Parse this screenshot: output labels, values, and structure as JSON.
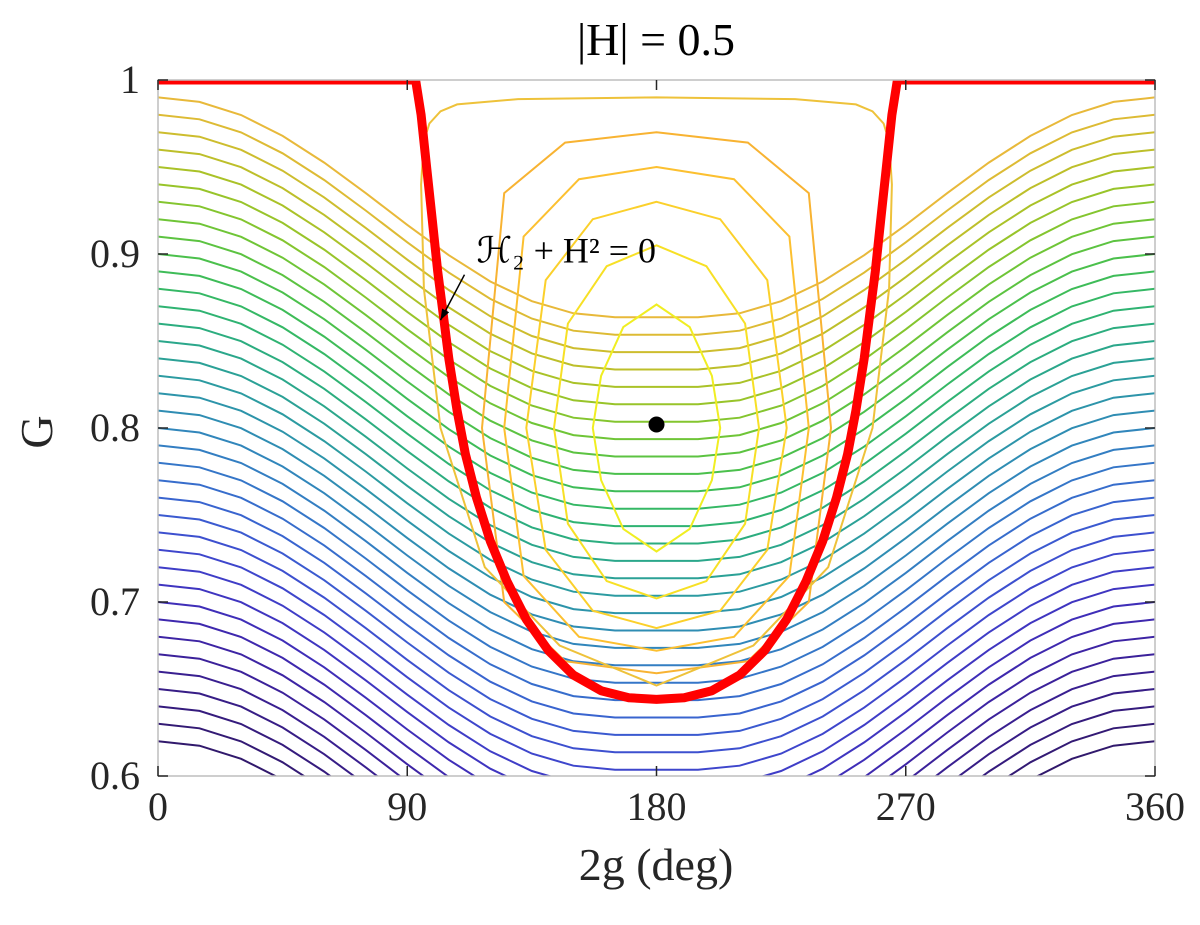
{
  "chart_data": {
    "type": "line",
    "title": "|H| = 0.5",
    "xlabel": "2g (deg)",
    "ylabel": "G",
    "xlim": [
      0,
      360
    ],
    "ylim": [
      0.6,
      1.0
    ],
    "xticks": [
      0,
      90,
      180,
      270,
      360
    ],
    "xtick_labels": [
      "0",
      "90",
      "180",
      "270",
      "360"
    ],
    "yticks": [
      0.6,
      0.7,
      0.8,
      0.9,
      1.0
    ],
    "ytick_labels": [
      "0.6",
      "0.7",
      "0.8",
      "0.9",
      "1"
    ],
    "grid": false,
    "separatrix": {
      "color": "#ff0000",
      "x": [
        0,
        93,
        95,
        97,
        99,
        101,
        103,
        105,
        108,
        111,
        115,
        120,
        126,
        133,
        141,
        150,
        160,
        170,
        180,
        190,
        200,
        210,
        219,
        227,
        234,
        240,
        245,
        249,
        252,
        255,
        257,
        259,
        261,
        263,
        265,
        267,
        360
      ],
      "y": [
        1.0,
        1.0,
        0.98,
        0.95,
        0.92,
        0.89,
        0.865,
        0.84,
        0.81,
        0.785,
        0.76,
        0.735,
        0.712,
        0.69,
        0.672,
        0.658,
        0.649,
        0.645,
        0.644,
        0.645,
        0.649,
        0.658,
        0.672,
        0.69,
        0.712,
        0.735,
        0.76,
        0.785,
        0.81,
        0.84,
        0.865,
        0.89,
        0.92,
        0.95,
        0.98,
        1.0,
        1.0
      ]
    },
    "equilibrium": {
      "x": 180,
      "y": 0.802,
      "color": "#000000"
    },
    "annotation": {
      "text": "ℋ₂ + H² = 0",
      "x": 115,
      "y": 0.895,
      "arrow_to_x": 102,
      "arrow_to_y": 0.862
    },
    "libration_orbits": [
      {
        "x": [
          180,
          192,
          200,
          203,
          200,
          192,
          180,
          168,
          160,
          157,
          160,
          168,
          180
        ],
        "y": [
          0.871,
          0.858,
          0.83,
          0.8,
          0.77,
          0.742,
          0.729,
          0.742,
          0.77,
          0.8,
          0.83,
          0.858,
          0.871
        ],
        "color": "#f0ee22"
      },
      {
        "x": [
          180,
          198,
          212,
          217,
          212,
          198,
          180,
          162,
          148,
          143,
          148,
          162,
          180
        ],
        "y": [
          0.905,
          0.893,
          0.86,
          0.8,
          0.745,
          0.712,
          0.702,
          0.712,
          0.745,
          0.8,
          0.86,
          0.893,
          0.905
        ],
        "color": "#f7e025"
      },
      {
        "x": [
          180,
          203,
          220,
          227,
          220,
          203,
          180,
          157,
          140,
          133,
          140,
          157,
          180
        ],
        "y": [
          0.93,
          0.92,
          0.885,
          0.8,
          0.73,
          0.695,
          0.685,
          0.695,
          0.73,
          0.8,
          0.885,
          0.92,
          0.93
        ],
        "color": "#fbd02b"
      },
      {
        "x": [
          180,
          208,
          228,
          235,
          228,
          208,
          180,
          152,
          132,
          125,
          132,
          152,
          180
        ],
        "y": [
          0.95,
          0.943,
          0.91,
          0.8,
          0.715,
          0.68,
          0.672,
          0.68,
          0.715,
          0.8,
          0.91,
          0.943,
          0.95
        ],
        "color": "#fcc030"
      },
      {
        "x": [
          180,
          213,
          235,
          243,
          235,
          213,
          180,
          147,
          125,
          117,
          125,
          147,
          180
        ],
        "y": [
          0.97,
          0.964,
          0.935,
          0.8,
          0.7,
          0.666,
          0.659,
          0.666,
          0.7,
          0.8,
          0.935,
          0.964,
          0.97
        ],
        "color": "#f8b332"
      },
      {
        "x": [
          180,
          230,
          252,
          258,
          262,
          264,
          265,
          264,
          258,
          242,
          215,
          180,
          145,
          118,
          102,
          96,
          95,
          96,
          98,
          102,
          108,
          130,
          180
        ],
        "y": [
          0.99,
          0.989,
          0.986,
          0.982,
          0.975,
          0.965,
          0.94,
          0.88,
          0.8,
          0.72,
          0.675,
          0.652,
          0.675,
          0.72,
          0.8,
          0.88,
          0.94,
          0.965,
          0.975,
          0.982,
          0.986,
          0.989,
          0.99
        ],
        "color": "#eec23a"
      }
    ],
    "circulation_left": {
      "x": [
        0,
        15,
        30,
        45,
        60,
        75,
        90,
        105,
        120,
        135,
        150,
        165,
        180
      ],
      "y_offsets": [
        0,
        -0.0026,
        -0.0101,
        -0.0221,
        -0.0375,
        -0.055,
        -0.0733,
        -0.0907,
        -0.1058,
        -0.1171,
        -0.1241,
        -0.1264,
        -0.1264
      ],
      "start_values": [
        0.99,
        0.98,
        0.97,
        0.96,
        0.95,
        0.94,
        0.93,
        0.92,
        0.91,
        0.9,
        0.89,
        0.88,
        0.87,
        0.86,
        0.85,
        0.84,
        0.83,
        0.82,
        0.81,
        0.8,
        0.79,
        0.78,
        0.77,
        0.76,
        0.75,
        0.74,
        0.73,
        0.72,
        0.71,
        0.7,
        0.69,
        0.68,
        0.67,
        0.66,
        0.65,
        0.64,
        0.63,
        0.62
      ]
    },
    "colors_by_level": [
      "#e8b93a",
      "#ddbb34",
      "#cdbd2e",
      "#bdbf2a",
      "#aac228",
      "#98c42a",
      "#84c52f",
      "#6fc537",
      "#5cc341",
      "#4bc04c",
      "#3ebc58",
      "#35b865",
      "#2fb372",
      "#2cad7f",
      "#2ba78b",
      "#2ba196",
      "#2c9ba1",
      "#2d94aa",
      "#2f8db3",
      "#3186bb",
      "#337ec2",
      "#3576c8",
      "#376dcc",
      "#3964cf",
      "#3b5ad0",
      "#3d50cf",
      "#3e46cc",
      "#3f3dc7",
      "#3f35c0",
      "#3f2eb8",
      "#3e28ae",
      "#3d24a4",
      "#3b219a",
      "#391f90",
      "#371d86",
      "#351b7d",
      "#331a74",
      "#31196c"
    ]
  }
}
